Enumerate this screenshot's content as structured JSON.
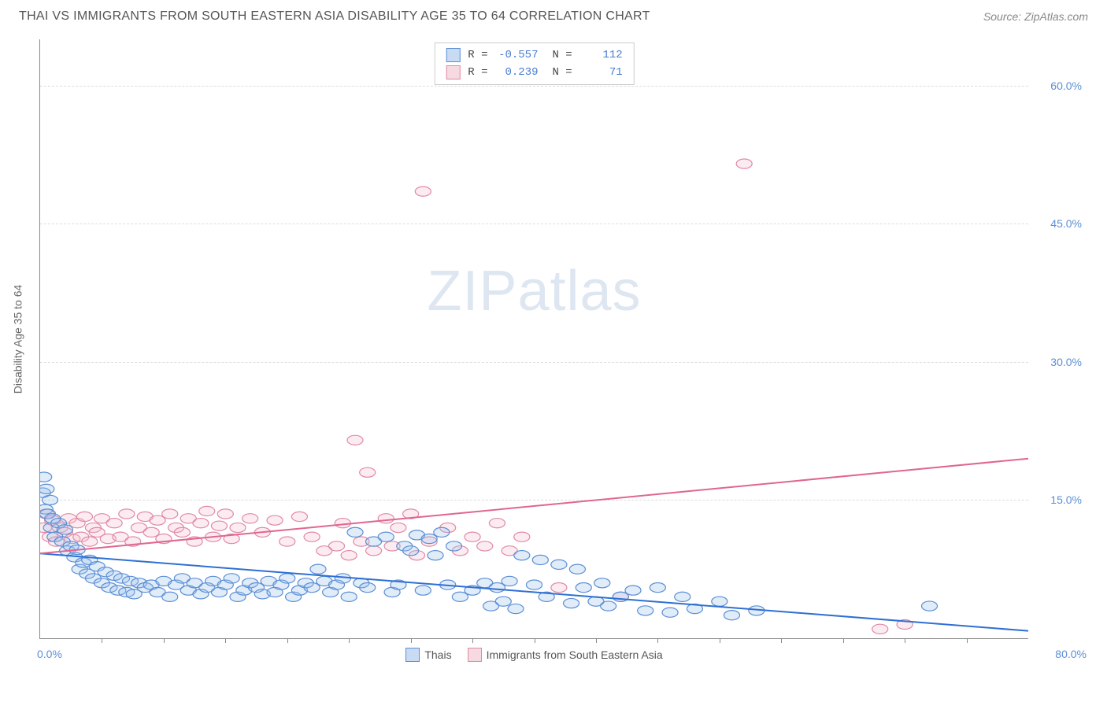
{
  "header": {
    "title": "THAI VS IMMIGRANTS FROM SOUTH EASTERN ASIA DISABILITY AGE 35 TO 64 CORRELATION CHART",
    "source": "Source: ZipAtlas.com"
  },
  "watermark": {
    "zip": "ZIP",
    "atlas": "atlas"
  },
  "chart": {
    "type": "scatter",
    "ylabel": "Disability Age 35 to 64",
    "xlim": [
      0,
      80
    ],
    "ylim": [
      0,
      65
    ],
    "x_origin_label": "0.0%",
    "x_max_label": "80.0%",
    "y_ticks": [
      15,
      30,
      45,
      60
    ],
    "y_tick_labels": [
      "15.0%",
      "30.0%",
      "45.0%",
      "60.0%"
    ],
    "x_minor_ticks": [
      5,
      10,
      15,
      20,
      25,
      30,
      35,
      40,
      45,
      50,
      55,
      60,
      65,
      70,
      75
    ],
    "background_color": "#ffffff",
    "grid_color": "#dddddd",
    "marker_radius": 8,
    "marker_fill_opacity": 0.3,
    "marker_stroke_width": 1.2,
    "series": {
      "thais": {
        "label": "Thais",
        "color_fill": "#9cc0eb",
        "color_stroke": "#5b8fd6",
        "R": "-0.557",
        "N": "112",
        "trend": {
          "x1": 0,
          "y1": 9.2,
          "x2": 80,
          "y2": 0.8,
          "color": "#2e6fd4",
          "width": 2
        },
        "points": [
          [
            0.2,
            15.8
          ],
          [
            0.3,
            17.5
          ],
          [
            0.4,
            14.0
          ],
          [
            0.5,
            16.2
          ],
          [
            0.6,
            13.5
          ],
          [
            0.8,
            15.0
          ],
          [
            0.9,
            12.0
          ],
          [
            1.0,
            13.0
          ],
          [
            1.2,
            11.0
          ],
          [
            1.5,
            12.5
          ],
          [
            1.8,
            10.5
          ],
          [
            2.0,
            11.8
          ],
          [
            2.2,
            9.5
          ],
          [
            2.5,
            10.0
          ],
          [
            2.8,
            8.8
          ],
          [
            3.0,
            9.6
          ],
          [
            3.2,
            7.5
          ],
          [
            3.5,
            8.2
          ],
          [
            3.8,
            7.0
          ],
          [
            4.0,
            8.5
          ],
          [
            4.3,
            6.5
          ],
          [
            4.6,
            7.8
          ],
          [
            5.0,
            6.0
          ],
          [
            5.3,
            7.2
          ],
          [
            5.6,
            5.5
          ],
          [
            6.0,
            6.8
          ],
          [
            6.3,
            5.2
          ],
          [
            6.6,
            6.5
          ],
          [
            7.0,
            5.0
          ],
          [
            7.3,
            6.2
          ],
          [
            7.6,
            4.8
          ],
          [
            8.0,
            6.0
          ],
          [
            8.5,
            5.5
          ],
          [
            9.0,
            5.8
          ],
          [
            9.5,
            5.0
          ],
          [
            10.0,
            6.2
          ],
          [
            10.5,
            4.5
          ],
          [
            11.0,
            5.8
          ],
          [
            11.5,
            6.5
          ],
          [
            12.0,
            5.2
          ],
          [
            12.5,
            6.0
          ],
          [
            13.0,
            4.8
          ],
          [
            13.5,
            5.5
          ],
          [
            14.0,
            6.2
          ],
          [
            14.5,
            5.0
          ],
          [
            15.0,
            5.8
          ],
          [
            15.5,
            6.5
          ],
          [
            16.0,
            4.5
          ],
          [
            16.5,
            5.2
          ],
          [
            17.0,
            6.0
          ],
          [
            17.5,
            5.5
          ],
          [
            18.0,
            4.8
          ],
          [
            18.5,
            6.2
          ],
          [
            19.0,
            5.0
          ],
          [
            19.5,
            5.8
          ],
          [
            20.0,
            6.5
          ],
          [
            20.5,
            4.5
          ],
          [
            21.0,
            5.2
          ],
          [
            21.5,
            6.0
          ],
          [
            22.0,
            5.5
          ],
          [
            22.5,
            7.5
          ],
          [
            23.0,
            6.2
          ],
          [
            23.5,
            5.0
          ],
          [
            24.0,
            5.8
          ],
          [
            24.5,
            6.5
          ],
          [
            25.0,
            4.5
          ],
          [
            25.5,
            11.5
          ],
          [
            26.0,
            6.0
          ],
          [
            26.5,
            5.5
          ],
          [
            27.0,
            10.5
          ],
          [
            28.0,
            11.0
          ],
          [
            28.5,
            5.0
          ],
          [
            29.0,
            5.8
          ],
          [
            29.5,
            10.0
          ],
          [
            30.0,
            9.5
          ],
          [
            30.5,
            11.2
          ],
          [
            31.0,
            5.2
          ],
          [
            31.5,
            10.8
          ],
          [
            32.0,
            9.0
          ],
          [
            32.5,
            11.5
          ],
          [
            33.0,
            5.8
          ],
          [
            33.5,
            10.0
          ],
          [
            34.0,
            4.5
          ],
          [
            35.0,
            5.2
          ],
          [
            36.0,
            6.0
          ],
          [
            36.5,
            3.5
          ],
          [
            37.0,
            5.5
          ],
          [
            37.5,
            4.0
          ],
          [
            38.0,
            6.2
          ],
          [
            38.5,
            3.2
          ],
          [
            39.0,
            9.0
          ],
          [
            40.0,
            5.8
          ],
          [
            40.5,
            8.5
          ],
          [
            41.0,
            4.5
          ],
          [
            42.0,
            8.0
          ],
          [
            43.0,
            3.8
          ],
          [
            43.5,
            7.5
          ],
          [
            44.0,
            5.5
          ],
          [
            45.0,
            4.0
          ],
          [
            45.5,
            6.0
          ],
          [
            46.0,
            3.5
          ],
          [
            47.0,
            4.5
          ],
          [
            48.0,
            5.2
          ],
          [
            49.0,
            3.0
          ],
          [
            50.0,
            5.5
          ],
          [
            51.0,
            2.8
          ],
          [
            52.0,
            4.5
          ],
          [
            53.0,
            3.2
          ],
          [
            55.0,
            4.0
          ],
          [
            56.0,
            2.5
          ],
          [
            58.0,
            3.0
          ],
          [
            72.0,
            3.5
          ]
        ]
      },
      "immigrants": {
        "label": "Immigrants from South Eastern Asia",
        "color_fill": "#f4c0d0",
        "color_stroke": "#e08aa5",
        "R": "0.239",
        "N": "71",
        "trend": {
          "x1": 0,
          "y1": 9.2,
          "x2": 80,
          "y2": 19.5,
          "color": "#e06690",
          "width": 2
        },
        "points": [
          [
            0.3,
            12.0
          ],
          [
            0.5,
            13.5
          ],
          [
            0.8,
            11.0
          ],
          [
            1.0,
            12.8
          ],
          [
            1.3,
            10.5
          ],
          [
            1.6,
            12.0
          ],
          [
            2.0,
            11.5
          ],
          [
            2.3,
            13.0
          ],
          [
            2.6,
            10.8
          ],
          [
            3.0,
            12.5
          ],
          [
            3.3,
            11.0
          ],
          [
            3.6,
            13.2
          ],
          [
            4.0,
            10.5
          ],
          [
            4.3,
            12.0
          ],
          [
            4.6,
            11.5
          ],
          [
            5.0,
            13.0
          ],
          [
            5.5,
            10.8
          ],
          [
            6.0,
            12.5
          ],
          [
            6.5,
            11.0
          ],
          [
            7.0,
            13.5
          ],
          [
            7.5,
            10.5
          ],
          [
            8.0,
            12.0
          ],
          [
            8.5,
            13.2
          ],
          [
            9.0,
            11.5
          ],
          [
            9.5,
            12.8
          ],
          [
            10.0,
            10.8
          ],
          [
            10.5,
            13.5
          ],
          [
            11.0,
            12.0
          ],
          [
            11.5,
            11.5
          ],
          [
            12.0,
            13.0
          ],
          [
            12.5,
            10.5
          ],
          [
            13.0,
            12.5
          ],
          [
            13.5,
            13.8
          ],
          [
            14.0,
            11.0
          ],
          [
            14.5,
            12.2
          ],
          [
            15.0,
            13.5
          ],
          [
            15.5,
            10.8
          ],
          [
            16.0,
            12.0
          ],
          [
            17.0,
            13.0
          ],
          [
            18.0,
            11.5
          ],
          [
            19.0,
            12.8
          ],
          [
            20.0,
            10.5
          ],
          [
            21.0,
            13.2
          ],
          [
            22.0,
            11.0
          ],
          [
            23.0,
            9.5
          ],
          [
            24.0,
            10.0
          ],
          [
            24.5,
            12.5
          ],
          [
            25.0,
            9.0
          ],
          [
            25.5,
            21.5
          ],
          [
            26.0,
            10.5
          ],
          [
            26.5,
            18.0
          ],
          [
            27.0,
            9.5
          ],
          [
            28.0,
            13.0
          ],
          [
            28.5,
            10.0
          ],
          [
            29.0,
            12.0
          ],
          [
            30.0,
            13.5
          ],
          [
            30.5,
            9.0
          ],
          [
            31.0,
            48.5
          ],
          [
            31.5,
            10.5
          ],
          [
            33.0,
            12.0
          ],
          [
            34.0,
            9.5
          ],
          [
            35.0,
            11.0
          ],
          [
            36.0,
            10.0
          ],
          [
            37.0,
            12.5
          ],
          [
            38.0,
            9.5
          ],
          [
            39.0,
            11.0
          ],
          [
            42.0,
            5.5
          ],
          [
            47.0,
            4.5
          ],
          [
            57.0,
            51.5
          ],
          [
            68.0,
            1.0
          ],
          [
            70.0,
            1.5
          ]
        ]
      }
    }
  },
  "legend_bottom": {
    "item1": "Thais",
    "item2": "Immigrants from South Eastern Asia"
  }
}
